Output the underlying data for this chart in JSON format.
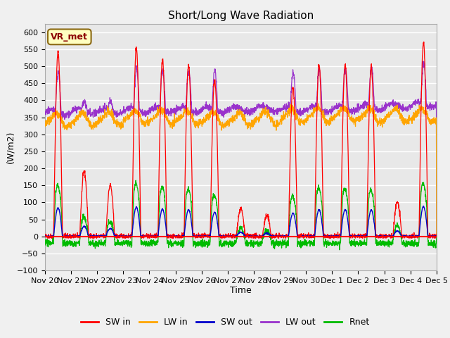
{
  "title": "Short/Long Wave Radiation",
  "xlabel": "Time",
  "ylabel": "(W/m2)",
  "ylim": [
    -100,
    625
  ],
  "yticks": [
    -100,
    -50,
    0,
    50,
    100,
    150,
    200,
    250,
    300,
    350,
    400,
    450,
    500,
    550,
    600
  ],
  "x_tick_labels": [
    "Nov 20",
    "Nov 21",
    "Nov 22",
    "Nov 23",
    "Nov 24",
    "Nov 25",
    "Nov 26",
    "Nov 27",
    "Nov 28",
    "Nov 29",
    "Nov 30",
    "Dec 1",
    "Dec 2",
    "Dec 3",
    "Dec 4",
    "Dec 5"
  ],
  "colors": {
    "SW_in": "#ff0000",
    "LW_in": "#ffa500",
    "SW_out": "#0000cc",
    "LW_out": "#9932cc",
    "Rnet": "#00bb00"
  },
  "legend_labels": [
    "SW in",
    "LW in",
    "SW out",
    "LW out",
    "Rnet"
  ],
  "annotation_text": "VR_met",
  "annotation_color": "#8b0000",
  "annotation_bg": "#ffffc0",
  "background_color": "#dcdcdc",
  "plot_bg_color": "#e8e8e8",
  "grid_color": "#ffffff",
  "title_fontsize": 11,
  "axis_fontsize": 9,
  "tick_fontsize": 8,
  "SW_in_peaks": [
    540,
    190,
    150,
    555,
    520,
    505,
    460,
    80,
    60,
    440,
    505,
    505,
    500,
    100,
    570
  ],
  "n_days": 15
}
